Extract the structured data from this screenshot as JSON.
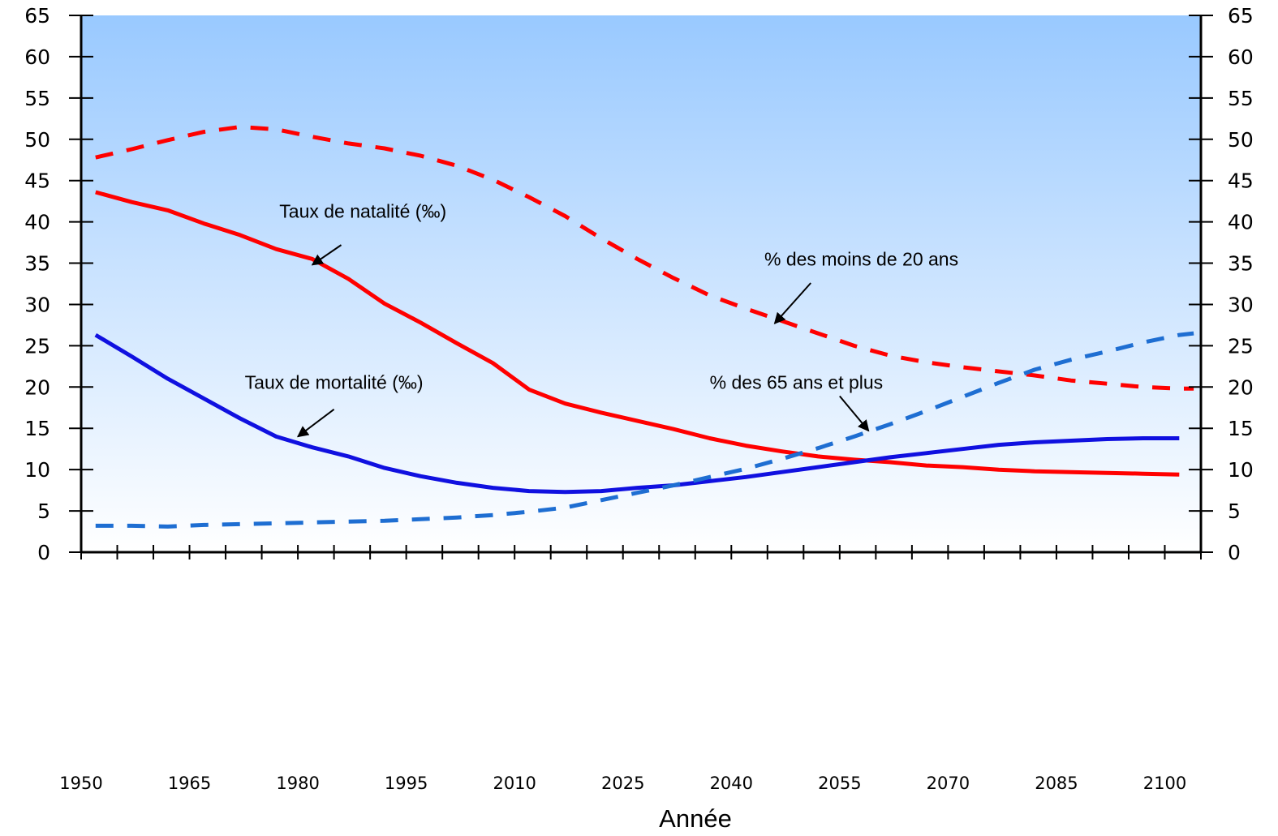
{
  "chart_data": {
    "type": "line",
    "xlabel": "Année",
    "ylim": [
      0,
      65
    ],
    "xlim": [
      1950,
      2105
    ],
    "y_ticks": [
      "0",
      "5",
      "10",
      "15",
      "20",
      "25",
      "30",
      "35",
      "40",
      "45",
      "50",
      "55",
      "60",
      "65"
    ],
    "x_tick_labels": [
      "1950",
      "1965",
      "1980",
      "1995",
      "2010",
      "2025",
      "2040",
      "2055",
      "2070",
      "2085",
      "2100"
    ],
    "grid": false,
    "background": "gradient light-blue (top) to white (bottom)",
    "series": [
      {
        "key": "natalite",
        "style": "solid",
        "color": "#ff0000",
        "x": [
          1952,
          1957,
          1962,
          1967,
          1972,
          1977,
          1982,
          1987,
          1992,
          1997,
          2002,
          2007,
          2012,
          2017,
          2022,
          2027,
          2032,
          2037,
          2042,
          2047,
          2052,
          2057,
          2062,
          2067,
          2072,
          2077,
          2082,
          2087,
          2092,
          2097,
          2102
        ],
        "values": [
          43.6,
          42.4,
          41.4,
          39.8,
          38.4,
          36.7,
          35.5,
          33.1,
          30.1,
          27.8,
          25.3,
          22.9,
          19.7,
          18.0,
          16.9,
          15.9,
          14.9,
          13.8,
          12.9,
          12.2,
          11.6,
          11.2,
          10.9,
          10.5,
          10.3,
          10.0,
          9.8,
          9.7,
          9.6,
          9.5,
          9.4
        ]
      },
      {
        "key": "mortalite",
        "style": "solid",
        "color": "#1010e0",
        "x": [
          1952,
          1957,
          1962,
          1967,
          1972,
          1977,
          1982,
          1987,
          1992,
          1997,
          2002,
          2007,
          2012,
          2017,
          2022,
          2027,
          2032,
          2037,
          2042,
          2047,
          2052,
          2057,
          2062,
          2067,
          2072,
          2077,
          2082,
          2087,
          2092,
          2097,
          2102
        ],
        "values": [
          26.3,
          23.7,
          21.0,
          18.6,
          16.2,
          14.0,
          12.7,
          11.6,
          10.2,
          9.2,
          8.4,
          7.8,
          7.4,
          7.3,
          7.4,
          7.8,
          8.1,
          8.6,
          9.1,
          9.7,
          10.3,
          10.9,
          11.5,
          12.0,
          12.5,
          13.0,
          13.3,
          13.5,
          13.7,
          13.8,
          13.8
        ]
      },
      {
        "key": "moins20",
        "style": "dashed",
        "color": "#ff0000",
        "x": [
          1952,
          1957,
          1962,
          1967,
          1972,
          1977,
          1982,
          1987,
          1992,
          1997,
          2002,
          2007,
          2012,
          2017,
          2022,
          2027,
          2032,
          2037,
          2042,
          2047,
          2052,
          2057,
          2062,
          2067,
          2072,
          2077,
          2082,
          2087,
          2092,
          2097,
          2102,
          2104
        ],
        "values": [
          47.8,
          48.8,
          49.9,
          50.9,
          51.5,
          51.2,
          50.3,
          49.5,
          48.9,
          48.0,
          46.8,
          45.1,
          43.0,
          40.7,
          38.0,
          35.5,
          33.2,
          31.1,
          29.5,
          28.0,
          26.5,
          25.0,
          23.8,
          23.0,
          22.4,
          21.9,
          21.4,
          20.8,
          20.4,
          20.0,
          19.8,
          19.8
        ]
      },
      {
        "key": "plus65",
        "style": "dashed",
        "color": "#1e6ed2",
        "x": [
          1952,
          1957,
          1962,
          1967,
          1972,
          1977,
          1982,
          1987,
          1992,
          1997,
          2002,
          2007,
          2012,
          2017,
          2022,
          2027,
          2032,
          2037,
          2042,
          2047,
          2052,
          2057,
          2062,
          2067,
          2072,
          2077,
          2082,
          2087,
          2092,
          2097,
          2102,
          2104
        ],
        "values": [
          3.2,
          3.2,
          3.1,
          3.3,
          3.4,
          3.5,
          3.6,
          3.7,
          3.8,
          4.0,
          4.2,
          4.5,
          4.9,
          5.4,
          6.3,
          7.2,
          8.1,
          9.1,
          10.1,
          11.3,
          12.6,
          14.0,
          15.5,
          17.1,
          18.8,
          20.5,
          22.1,
          23.3,
          24.3,
          25.4,
          26.3,
          26.5
        ]
      }
    ],
    "annotations": [
      {
        "text": "Taux de natalité  (‰)",
        "x": 1989,
        "y": 40.5,
        "ax": 1986,
        "ay": 37.2,
        "tx": 1982,
        "ty": 34.8
      },
      {
        "text": "Taux de mortalité (‰)",
        "x": 1985,
        "y": 19.8,
        "ax": 1985,
        "ay": 17.3,
        "tx": 1980,
        "ty": 14.0
      },
      {
        "text": "% des moins de 20 ans",
        "x": 2058,
        "y": 34.7,
        "ax": 2051,
        "ay": 32.6,
        "tx": 2046,
        "ty": 27.7
      },
      {
        "text": "% des 65 ans et plus",
        "x": 2049,
        "y": 19.8,
        "ax": 2055,
        "ay": 18.9,
        "tx": 2059,
        "ty": 14.7
      }
    ]
  }
}
